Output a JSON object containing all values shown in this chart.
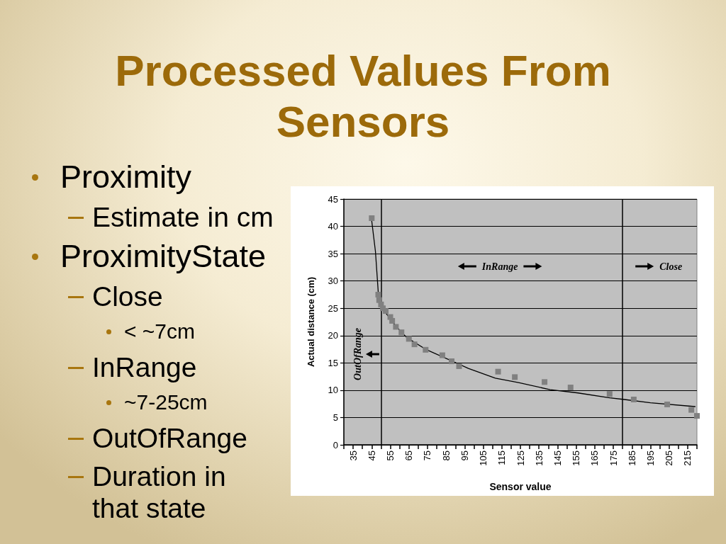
{
  "chart_data": {
    "type": "scatter",
    "title": "Processed Values From Sensors",
    "xlabel": "Sensor value",
    "ylabel": "Actual distance (cm)",
    "annotations": [
      "Proximity",
      "Estimate in cm",
      "ProximityState",
      "Close",
      "< ~7cm",
      "InRange",
      "~7-25cm",
      "OutOfRange",
      "Duration in that state",
      "InRange",
      "Close",
      "OutOfRange"
    ],
    "series": [
      {
        "color": "#808080",
        "x": [
          45,
          48.5,
          49,
          50,
          51,
          52.5,
          55,
          56,
          58,
          61,
          65,
          68,
          74,
          83,
          88,
          92,
          113,
          122,
          138,
          152,
          173,
          186,
          204,
          217,
          220
        ],
        "values": [
          41.5,
          27.5,
          26.5,
          25.7,
          25,
          24.5,
          23.4,
          22.7,
          21.6,
          20.6,
          19.4,
          18.4,
          17.4,
          16.4,
          15.3,
          14.4,
          13.4,
          12.4,
          11.5,
          10.5,
          9.3,
          8.3,
          7.4,
          6.4,
          5.3
        ]
      },
      {
        "type": "line",
        "color": "#000000",
        "marker": "none",
        "x": [
          45,
          47,
          48.5,
          52,
          58,
          64,
          74,
          88.5,
          97,
          111.5,
          124,
          141,
          156,
          173,
          181,
          195,
          219
        ],
        "values": [
          41,
          35.4,
          28,
          24.4,
          21.7,
          19.6,
          17.5,
          15.3,
          14,
          12.2,
          11.4,
          10.1,
          9.5,
          8.6,
          8.3,
          7.7,
          7
        ]
      }
    ],
    "xlim": [
      30,
      220
    ],
    "xticks": [
      {
        "value": 30,
        "label": null
      },
      35,
      {
        "value": 40,
        "label": null
      },
      45,
      {
        "value": 50,
        "label": null
      },
      55,
      {
        "value": 60,
        "label": null
      },
      65,
      {
        "value": 70,
        "label": null
      },
      75,
      {
        "value": 80,
        "label": null
      },
      85,
      {
        "value": 90,
        "label": null
      },
      95,
      {
        "value": 100,
        "label": null
      },
      105,
      {
        "value": 110,
        "label": null
      },
      115,
      {
        "value": 120,
        "label": null
      },
      125,
      {
        "value": 130,
        "label": null
      },
      135,
      {
        "value": 140,
        "label": null
      },
      145,
      {
        "value": 150,
        "label": null
      },
      155,
      {
        "value": 160,
        "label": null
      },
      165,
      {
        "value": 170,
        "label": null
      },
      175,
      {
        "value": 180,
        "label": null
      },
      185,
      {
        "value": 190,
        "label": null
      },
      195,
      {
        "value": 200,
        "label": null
      },
      205,
      {
        "value": 210,
        "label": null
      },
      215,
      {
        "value": 220,
        "label": null
      }
    ],
    "ylim": [
      0,
      45
    ],
    "yticks": [
      0,
      5,
      10,
      15,
      20,
      25,
      30,
      35,
      40,
      45
    ],
    "grid": "y",
    "marker": "square",
    "ref_lines": [
      {
        "axis": "x",
        "value": 50,
        "color": "#000000"
      },
      {
        "axis": "x",
        "value": 180,
        "color": "#000000"
      }
    ]
  }
}
